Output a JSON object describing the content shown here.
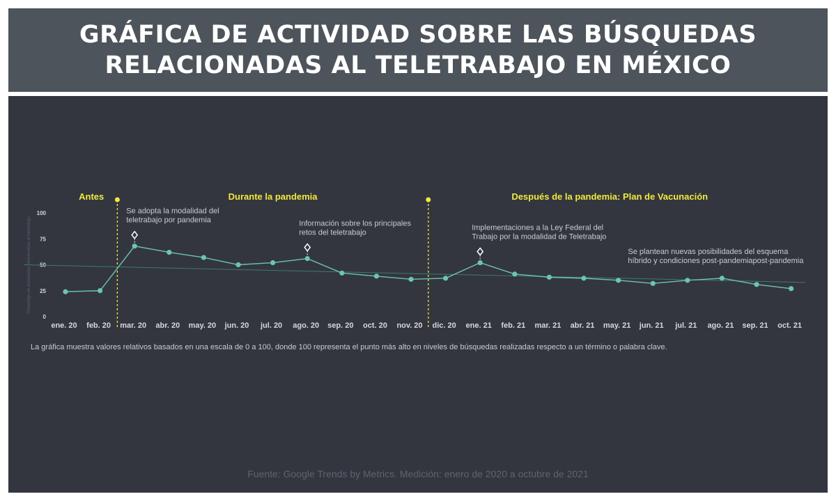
{
  "title": {
    "line1": "GRÁFICA DE ACTIVIDAD SOBRE LAS BÚSQUEDAS",
    "line2": "RELACIONADAS AL TELETRABAJO EN MÉXICO"
  },
  "colors": {
    "header_bg": "#4d545b",
    "panel_bg": "#33363f",
    "series": "#6cc5b0",
    "trend": "#3f7a6c",
    "period_label": "#f0ea3c",
    "divider": "#f0ea3c"
  },
  "chart_data": {
    "type": "line",
    "x": [
      "ene. 20",
      "feb. 20",
      "mar. 20",
      "abr. 20",
      "may. 20",
      "jun. 20",
      "jul. 20",
      "ago. 20",
      "sep. 20",
      "oct. 20",
      "nov. 20",
      "dic. 20",
      "ene. 21",
      "feb. 21",
      "mar. 21",
      "abr. 21",
      "may. 21",
      "jun. 21",
      "jul. 21",
      "ago. 21",
      "sep. 21",
      "oct. 21"
    ],
    "series": [
      {
        "values": [
          24,
          25,
          68,
          62,
          57,
          50,
          52,
          56,
          42,
          39,
          36,
          37,
          52,
          41,
          38,
          37,
          35,
          32,
          35,
          37,
          31,
          27
        ]
      }
    ],
    "trendline": {
      "start": 50,
      "end": 33
    },
    "ylim": [
      0,
      100
    ],
    "yticks": [
      0,
      25,
      50,
      75,
      100
    ],
    "ylabel": "Porcentaje de búsquedas relacionadas al teletrabajo",
    "grid": false,
    "periods": [
      {
        "label": "Antes",
        "from": 0,
        "to": 1.5
      },
      {
        "label": "Durante la pandemia",
        "from": 1.5,
        "to": 10.5
      },
      {
        "label": "Después de la pandemia: Plan de Vacunación",
        "from": 10.5,
        "to": 21
      }
    ],
    "dividers": [
      1.5,
      10.5
    ],
    "annotations": [
      {
        "index": 2,
        "marker": true,
        "lines": [
          "Se adopta la modalidad del",
          "teletrabajo por pandemia"
        ]
      },
      {
        "index": 7,
        "marker": true,
        "lines": [
          "Información sobre los principales",
          "retos del teletrabajo"
        ]
      },
      {
        "index": 12,
        "marker": true,
        "lines": [
          "Implementaciones a la Ley Federal del",
          "Trabajo por la modalidad de Teletrabajo"
        ]
      },
      {
        "index": 19,
        "marker": false,
        "lines": [
          "Se plantean nuevas posibilidades del esquema",
          "híbrido y condiciones post-pandemiapost-pandemia"
        ]
      }
    ]
  },
  "note": "La gráfica muestra valores relativos basados en una escala de 0 a 100, donde 100 representa el punto más alto en niveles de búsquedas realizadas respecto a un término o palabra clave.",
  "source": "Fuente: Google Trends by Metrics. Medición: enero de 2020 a octubre de 2021"
}
